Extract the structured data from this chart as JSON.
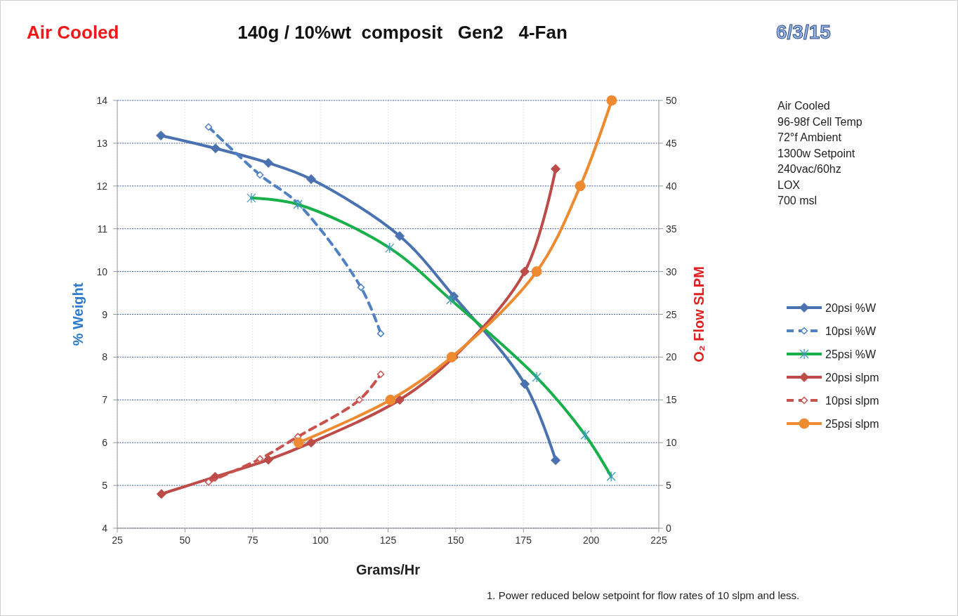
{
  "chart_data": {
    "type": "line",
    "title": "140g / 10%wt  composit   Gen2   4-Fan",
    "xlabel": "Grams/Hr",
    "ylabel": "% Weight",
    "y2label": "O₂ Flow   SLPM",
    "annotations": [
      "Air Cooled",
      "6/3/15",
      "Air Cooled",
      "96-98f Cell Temp",
      "72°f Ambient",
      "1300w Setpoint",
      "240vac/60hz",
      "LOX",
      "700 msl",
      "1. Power reduced below setpoint for flow rates of 10 slpm and less."
    ],
    "xlim": [
      25,
      225
    ],
    "xticks": [
      25,
      50,
      75,
      100,
      125,
      150,
      175,
      200,
      225
    ],
    "ylim": [
      4,
      14
    ],
    "yticks": [
      4,
      5,
      6,
      7,
      8,
      9,
      10,
      11,
      12,
      13,
      14
    ],
    "y2lim": [
      0,
      50
    ],
    "y2ticks": [
      0,
      5,
      10,
      15,
      20,
      25,
      30,
      35,
      40,
      45,
      50
    ],
    "grid": true,
    "legend": "right",
    "series": [
      {
        "name": "20psi %W",
        "color": "#4a72b0",
        "marker": "diamond",
        "line_style": "solid",
        "x": [
          41.1,
          61.3,
          80.8,
          96.6,
          129.3,
          149.3,
          175.5,
          186.9
        ],
        "values": [
          13.18,
          12.88,
          12.54,
          12.16,
          10.83,
          9.42,
          7.37,
          5.59
        ]
      },
      {
        "name": "10psi %W",
        "color": "#4f81c4",
        "marker": "diamond",
        "line_style": "dashed",
        "x": [
          58.7,
          77.7,
          91.7,
          115,
          122.3
        ],
        "values": [
          13.38,
          12.26,
          11.59,
          9.63,
          8.55
        ]
      },
      {
        "name": "25psi %W",
        "color": "#18b04a",
        "marker": "cross",
        "line_style": "solid",
        "x": [
          74.5,
          91.7,
          125.6,
          148.2,
          179.9,
          197.8,
          207.4
        ],
        "values": [
          11.72,
          11.57,
          10.55,
          9.34,
          7.53,
          6.18,
          5.21
        ]
      },
      {
        "name": "20psi slpm",
        "color": "#bd4b48",
        "marker": "diamond",
        "line_style": "solid",
        "axis": "y2",
        "x": [
          41.3,
          61.1,
          80.8,
          96.6,
          129.3,
          149.3,
          175.5,
          186.9
        ],
        "values": [
          4,
          6,
          8,
          10,
          15,
          20,
          30,
          42
        ]
      },
      {
        "name": "10psi slpm",
        "color": "#c9514e",
        "marker": "diamond",
        "line_style": "dashed",
        "axis": "y2",
        "x": [
          58.7,
          77.7,
          91.7,
          114.4,
          122.3
        ],
        "values": [
          5.4,
          8.1,
          10.7,
          15,
          18
        ]
      },
      {
        "name": "25psi slpm",
        "color": "#ee8a30",
        "marker": "circle",
        "line_style": "solid",
        "axis": "y2",
        "x": [
          92,
          125.9,
          148.5,
          179.9,
          196,
          207.6
        ],
        "values": [
          10,
          15,
          20,
          30,
          40,
          50
        ]
      }
    ]
  }
}
